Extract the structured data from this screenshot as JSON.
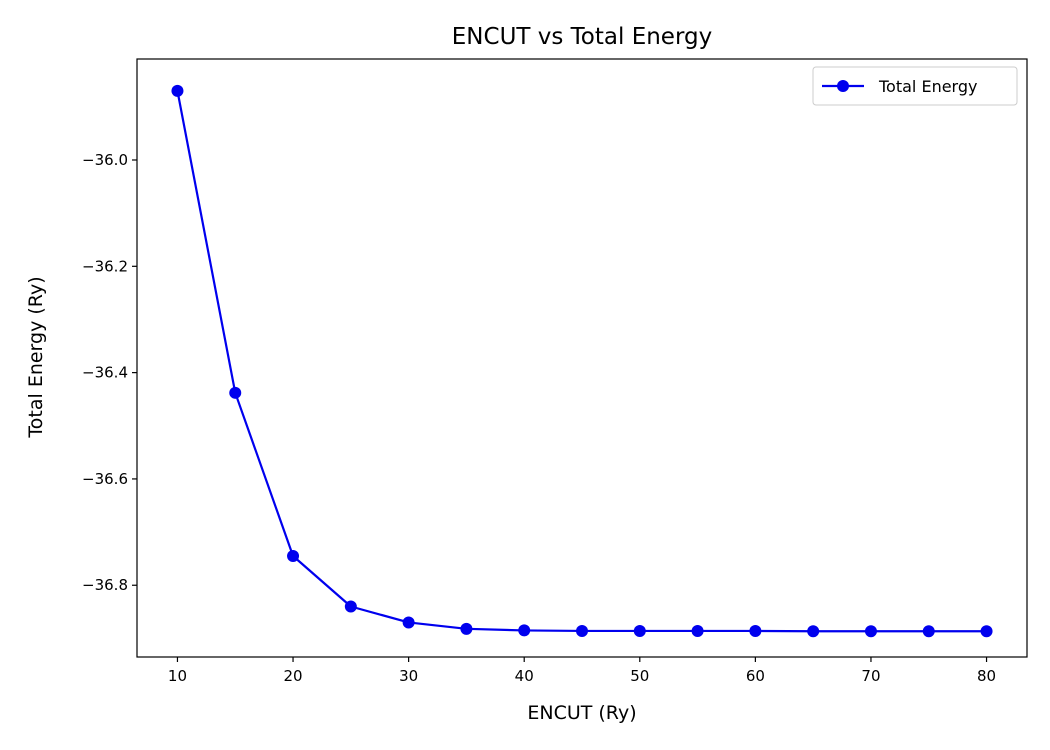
{
  "chart_data": {
    "type": "line",
    "title": "ENCUT vs Total Energy",
    "xlabel": "ENCUT (Ry)",
    "ylabel": "Total Energy (Ry)",
    "xlim": [
      6.5,
      83.5
    ],
    "ylim": [
      -36.935,
      -35.81
    ],
    "xticks": [
      10,
      20,
      30,
      40,
      50,
      60,
      70,
      80
    ],
    "yticks": [
      -36.0,
      -36.2,
      -36.4,
      -36.6,
      -36.8
    ],
    "xtick_labels": [
      "10",
      "20",
      "30",
      "40",
      "50",
      "60",
      "70",
      "80"
    ],
    "ytick_labels": [
      "−36.0",
      "−36.2",
      "−36.4",
      "−36.6",
      "−36.8"
    ],
    "grid": false,
    "legend_position": "top-right",
    "series": [
      {
        "name": "Total Energy",
        "color": "#0000ee",
        "marker": "circle",
        "x": [
          10,
          15,
          20,
          25,
          30,
          35,
          40,
          45,
          50,
          55,
          60,
          65,
          70,
          75,
          80
        ],
        "y": [
          -35.87,
          -36.438,
          -36.745,
          -36.84,
          -36.87,
          -36.882,
          -36.885,
          -36.886,
          -36.886,
          -36.886,
          -36.886,
          -36.8865,
          -36.8865,
          -36.8865,
          -36.8865
        ]
      }
    ]
  }
}
